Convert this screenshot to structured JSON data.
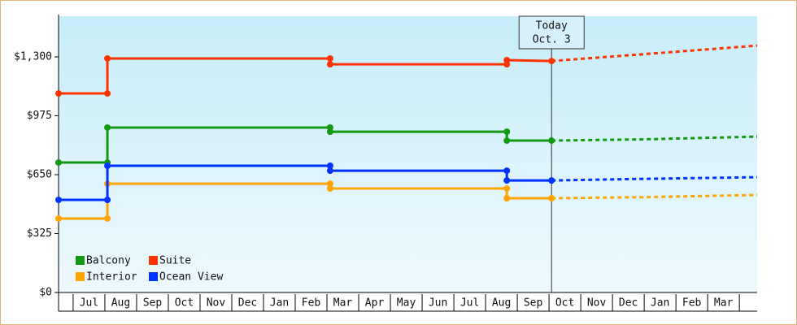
{
  "chart_data": {
    "type": "step-line",
    "annotations": [
      "Today",
      "Oct. 3"
    ],
    "today_x": 15.08,
    "categories": [
      "Jul",
      "Aug",
      "Sep",
      "Oct",
      "Nov",
      "Dec",
      "Jan",
      "Feb",
      "Mar",
      "Apr",
      "May",
      "Jun",
      "Jul",
      "Aug",
      "Sep",
      "Oct",
      "Nov",
      "Dec",
      "Jan",
      "Feb",
      "Mar"
    ],
    "xlim": [
      -0.46,
      21.56
    ],
    "ylim": [
      0,
      1524
    ],
    "yticks": [
      {
        "value": 0,
        "label": "$0"
      },
      {
        "value": 325,
        "label": "$325"
      },
      {
        "value": 650,
        "label": "$650"
      },
      {
        "value": 975,
        "label": "$975"
      },
      {
        "value": 1300,
        "label": "$1,300"
      }
    ],
    "series": [
      {
        "name": "Balcony",
        "color": "#139a13",
        "x": [
          -0.46,
          1.08,
          1.08,
          8.1,
          8.1,
          13.67,
          13.67,
          15.08
        ],
        "values": [
          717,
          717,
          910,
          910,
          887,
          887,
          838,
          838
        ],
        "forecast_x": [
          15.08,
          18,
          21.56
        ],
        "forecast_values": [
          838,
          845,
          860
        ]
      },
      {
        "name": "Suite",
        "color": "#ff3300",
        "x": [
          -0.46,
          1.08,
          1.08,
          8.1,
          8.1,
          13.67,
          13.67,
          15.08
        ],
        "values": [
          1098,
          1098,
          1291,
          1291,
          1259,
          1259,
          1282,
          1277
        ],
        "forecast_x": [
          15.08,
          18,
          21.56
        ],
        "forecast_values": [
          1277,
          1315,
          1362
        ]
      },
      {
        "name": "Interior",
        "color": "#ffa500",
        "x": [
          -0.46,
          1.08,
          1.08,
          8.1,
          8.1,
          13.67,
          13.67,
          15.08
        ],
        "values": [
          408,
          408,
          600,
          600,
          574,
          574,
          520,
          520
        ],
        "forecast_x": [
          15.08,
          18,
          21.56
        ],
        "forecast_values": [
          520,
          526,
          538
        ]
      },
      {
        "name": "Ocean View",
        "color": "#0033ff",
        "x": [
          -0.46,
          1.08,
          1.08,
          8.1,
          8.1,
          13.67,
          13.67,
          15.08
        ],
        "values": [
          511,
          511,
          699,
          699,
          672,
          672,
          618,
          618
        ],
        "forecast_x": [
          15.08,
          18,
          21.56
        ],
        "forecast_values": [
          618,
          627,
          636
        ]
      }
    ]
  }
}
